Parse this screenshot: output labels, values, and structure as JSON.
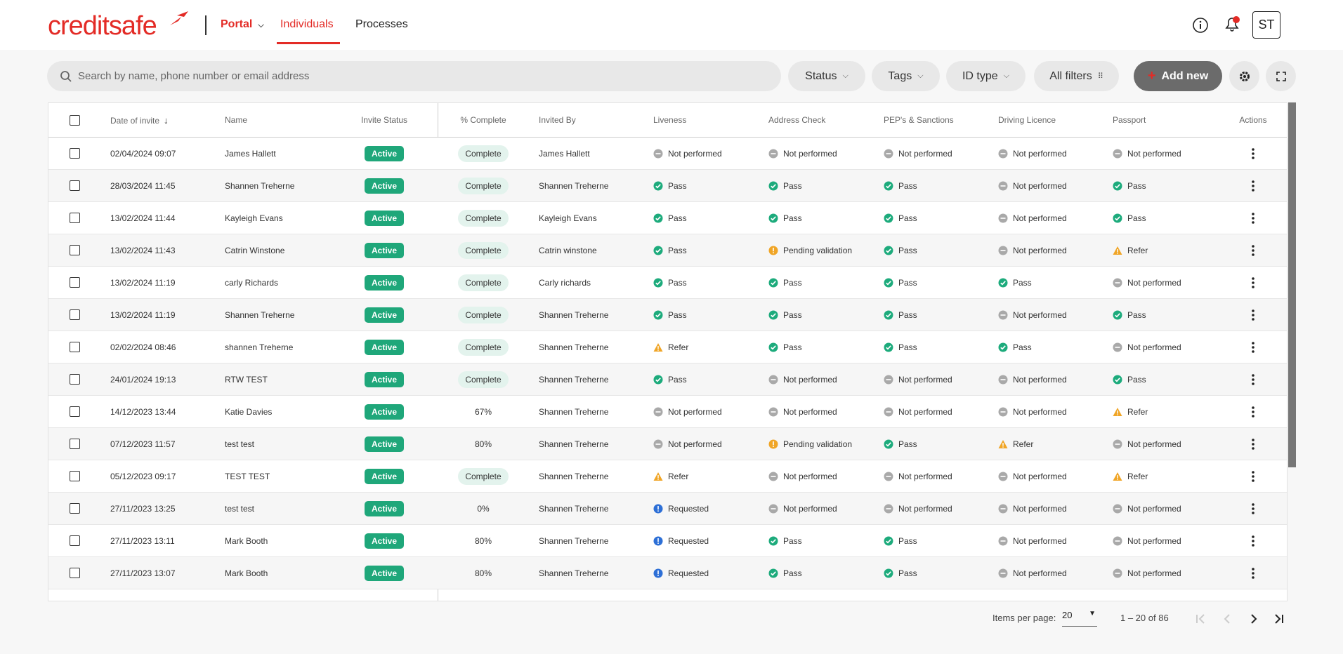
{
  "header": {
    "logo": "creditsafe",
    "nav": [
      "Portal",
      "Individuals",
      "Processes"
    ],
    "user_initials": "ST"
  },
  "toolbar": {
    "search_placeholder": "Search by name, phone number or email address",
    "filters": [
      "Status",
      "Tags",
      "ID type",
      "All filters"
    ],
    "add_button": "Add new"
  },
  "table": {
    "columns": [
      "Date of invite",
      "Name",
      "Invite Status",
      "% Complete",
      "Invited By",
      "Liveness",
      "Address Check",
      "PEP's & Sanctions",
      "Driving Licence",
      "Passport",
      "Actions"
    ],
    "rows": [
      [
        "02/04/2024 09:07",
        "James Hallett",
        "Active",
        "Complete",
        "James Hallett",
        "Not performed",
        "Not performed",
        "Not performed",
        "Not performed",
        "Not performed"
      ],
      [
        "28/03/2024 11:45",
        "Shannen Treherne",
        "Active",
        "Complete",
        "Shannen Treherne",
        "Pass",
        "Pass",
        "Pass",
        "Not performed",
        "Pass"
      ],
      [
        "13/02/2024 11:44",
        "Kayleigh Evans",
        "Active",
        "Complete",
        "Kayleigh Evans",
        "Pass",
        "Pass",
        "Pass",
        "Not performed",
        "Pass"
      ],
      [
        "13/02/2024 11:43",
        "Catrin Winstone",
        "Active",
        "Complete",
        "Catrin winstone",
        "Pass",
        "Pending validation",
        "Pass",
        "Not performed",
        "Refer"
      ],
      [
        "13/02/2024 11:19",
        "carly Richards",
        "Active",
        "Complete",
        "Carly richards",
        "Pass",
        "Pass",
        "Pass",
        "Pass",
        "Not performed"
      ],
      [
        "13/02/2024 11:19",
        "Shannen Treherne",
        "Active",
        "Complete",
        "Shannen Treherne",
        "Pass",
        "Pass",
        "Pass",
        "Not performed",
        "Pass"
      ],
      [
        "02/02/2024 08:46",
        "shannen Treherne",
        "Active",
        "Complete",
        "Shannen Treherne",
        "Refer",
        "Pass",
        "Pass",
        "Pass",
        "Not performed"
      ],
      [
        "24/01/2024 19:13",
        "RTW TEST",
        "Active",
        "Complete",
        "Shannen Treherne",
        "Pass",
        "Not performed",
        "Not performed",
        "Not performed",
        "Pass"
      ],
      [
        "14/12/2023 13:44",
        "Katie Davies",
        "Active",
        "67%",
        "Shannen Treherne",
        "Not performed",
        "Not performed",
        "Not performed",
        "Not performed",
        "Refer"
      ],
      [
        "07/12/2023 11:57",
        "test test",
        "Active",
        "80%",
        "Shannen Treherne",
        "Not performed",
        "Pending validation",
        "Pass",
        "Refer",
        "Not performed"
      ],
      [
        "05/12/2023 09:17",
        "TEST TEST",
        "Active",
        "Complete",
        "Shannen Treherne",
        "Refer",
        "Not performed",
        "Not performed",
        "Not performed",
        "Refer"
      ],
      [
        "27/11/2023 13:25",
        "test test",
        "Active",
        "0%",
        "Shannen Treherne",
        "Requested",
        "Not performed",
        "Not performed",
        "Not performed",
        "Not performed"
      ],
      [
        "27/11/2023 13:11",
        "Mark Booth",
        "Active",
        "80%",
        "Shannen Treherne",
        "Requested",
        "Pass",
        "Pass",
        "Not performed",
        "Not performed"
      ],
      [
        "27/11/2023 13:07",
        "Mark Booth",
        "Active",
        "80%",
        "Shannen Treherne",
        "Requested",
        "Pass",
        "Pass",
        "Not performed",
        "Not performed"
      ]
    ],
    "cell_styles": {
      "Not performed": {
        "icon": "dash",
        "color": "#a9a9a9"
      },
      "Pass": {
        "icon": "check",
        "color": "#1dab7c"
      },
      "Pending validation": {
        "icon": "bang",
        "color": "#f0a526"
      },
      "Refer": {
        "icon": "triangle",
        "color": "#f0a526"
      },
      "Requested": {
        "icon": "bang",
        "color": "#2d6fd6"
      },
      "Complete": {
        "pill": "#e3f3ed"
      },
      "Active": {
        "badge": "#1fa77a"
      }
    }
  },
  "pagination": {
    "label": "Items per page:",
    "page_size": "20",
    "range": "1 – 20 of 86"
  }
}
